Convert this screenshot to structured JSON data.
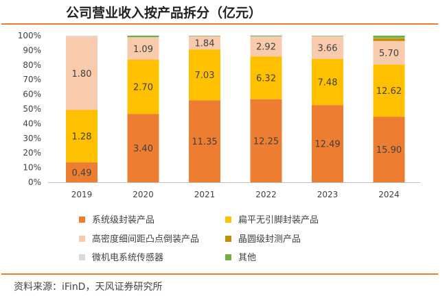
{
  "title": "公司营业收入按产品拆分（亿元）",
  "source": "资料来源：iFinD，天风证券研究所",
  "colors": {
    "rule": "#e87d2b",
    "series": [
      "#ed7d31",
      "#ffc000",
      "#f8cbad",
      "#bf8f00",
      "#d9d9d9",
      "#70ad47"
    ]
  },
  "chart_data": {
    "type": "bar",
    "stacked": true,
    "normalized": true,
    "categories": [
      "2019",
      "2020",
      "2021",
      "2022",
      "2023",
      "2024"
    ],
    "y_ticks": [
      "0%",
      "10%",
      "20%",
      "30%",
      "40%",
      "50%",
      "60%",
      "70%",
      "80%",
      "90%",
      "100%"
    ],
    "ylim": [
      0,
      100
    ],
    "grid": false,
    "legend_position": "bottom",
    "series": [
      {
        "name": "系统级封装产品",
        "values": [
          0.49,
          3.4,
          11.35,
          12.25,
          12.49,
          15.9
        ],
        "labels": [
          "0.49",
          "3.40",
          "11.35",
          "12.25",
          "12.49",
          "15.90"
        ]
      },
      {
        "name": "扁平无引脚封装产品",
        "values": [
          1.28,
          2.7,
          7.03,
          6.32,
          7.48,
          12.62
        ],
        "labels": [
          "1.28",
          "2.70",
          "7.03",
          "6.32",
          "7.48",
          "12.62"
        ]
      },
      {
        "name": "高密度细间距凸点倒装产品",
        "values": [
          1.8,
          1.09,
          1.84,
          2.92,
          3.66,
          5.7
        ],
        "labels": [
          "1.80",
          "1.09",
          "1.84",
          "2.92",
          "3.66",
          "5.70"
        ]
      },
      {
        "name": "晶圆级封测产品",
        "values": [
          0,
          0,
          0,
          0,
          0,
          0.72
        ],
        "labels": [
          "",
          "",
          "",
          "",
          "",
          ""
        ]
      },
      {
        "name": "微机电系统传感器",
        "values": [
          0.02,
          0.02,
          0.02,
          0.02,
          0.03,
          0.03
        ],
        "labels": [
          "",
          "",
          "",
          "",
          "",
          ""
        ]
      },
      {
        "name": "其他",
        "values": [
          0,
          0.08,
          0.05,
          0.11,
          0.07,
          0.55
        ],
        "labels": [
          "",
          "",
          "",
          "",
          "",
          ""
        ]
      }
    ]
  }
}
